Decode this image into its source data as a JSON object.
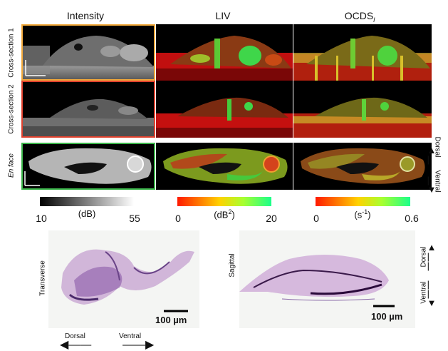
{
  "columns": {
    "intensity": "Intensity",
    "liv": "LIV",
    "ocds": "OCDS",
    "ocds_sub": "l"
  },
  "rows": {
    "cs1": "Cross-section 1",
    "cs2": "Cross-section 2",
    "enface": "En face"
  },
  "colorbars": {
    "intensity": {
      "min": "10",
      "unit": "(dB)",
      "max": "55"
    },
    "liv": {
      "min": "0",
      "unit": "(dB",
      "unit_sup": "2",
      "unit_close": ")",
      "max": "20"
    },
    "ocds": {
      "min": "0",
      "unit": "(s",
      "unit_sup": "-1",
      "unit_close": ")",
      "max": "0.6"
    }
  },
  "orientation": {
    "dorsal": "Dorsal",
    "ventral": "Ventral"
  },
  "histology": {
    "transverse": {
      "label": "Transverse",
      "scale": "100 µm"
    },
    "sagittal": {
      "label": "Sagittal",
      "scale": "100 µm",
      "dorsal": "Dorsal",
      "ventral": "Ventral"
    }
  },
  "bottom_axis": {
    "dorsal": "Dorsal",
    "ventral": "Ventral"
  },
  "colors": {
    "cs1_frame": "#f2a93b",
    "cs2_frame": "#e0412e",
    "enface_frame": "#3bb54a"
  }
}
